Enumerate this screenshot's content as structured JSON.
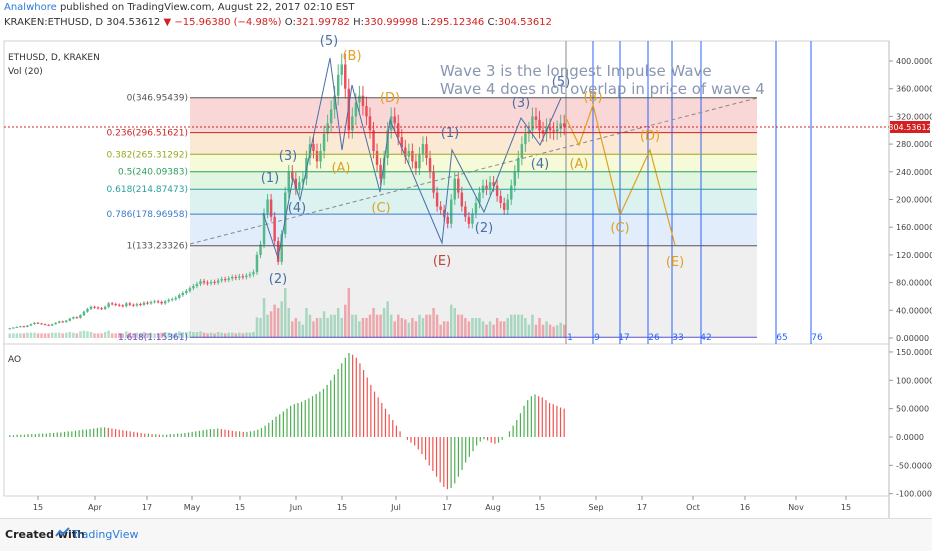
{
  "header": {
    "author": "Analwhore",
    "published": " published on TradingView.com, August 22, 2017 02:10 EST",
    "symbol_line": "KRAKEN:ETHUSD, D  304.53612",
    "change": "▼ −15.96380 (−4.98%)",
    "ohlc_o_label": " O:",
    "ohlc_o": "321.99782",
    "ohlc_h_label": " H:",
    "ohlc_h": "330.99998",
    "ohlc_l_label": " L:",
    "ohlc_l": "295.12346",
    "ohlc_c_label": " C:",
    "ohlc_c": "304.53612"
  },
  "panes": {
    "main_title": "ETHUSD, D, KRAKEN",
    "vol_label": "Vol (20)",
    "ao_label": "AO"
  },
  "annotation": {
    "line1": "Wave 3 is the longest Impulse Wave",
    "line2": "Wave 4 does not overlap in price of wave 4"
  },
  "colors": {
    "up": "#53b987",
    "down": "#eb4d5c",
    "fib_line": "#555555",
    "wave_blue": "#4a6fa5",
    "wave_orange": "#e0a020",
    "label_red": "#b5473f",
    "vline": "#2962ff",
    "ao_up": "#4caf50",
    "ao_down": "#ef5350"
  },
  "chart_data": [
    {
      "type": "candlestick",
      "title": "ETHUSD, D, KRAKEN",
      "x_tick_labels": [
        "15",
        "Apr",
        "17",
        "May",
        "15",
        "Jun",
        "15",
        "Jul",
        "17",
        "Aug",
        "15",
        "Sep",
        "17",
        "Oct",
        "16",
        "Nov",
        "15"
      ],
      "y_tick_labels": [
        "400.00000",
        "360.00000",
        "320.00000",
        "280.00000",
        "240.00000",
        "200.00000",
        "160.00000",
        "120.00000",
        "80.00000",
        "40.00000",
        "0.00000"
      ],
      "ylim": [
        0,
        420
      ],
      "last_price_label": "304.53612",
      "closes": [
        14,
        15,
        16,
        17,
        16,
        18,
        20,
        22,
        21,
        20,
        19,
        18,
        20,
        22,
        24,
        23,
        25,
        28,
        30,
        29,
        33,
        38,
        42,
        45,
        44,
        43,
        42,
        45,
        50,
        49,
        48,
        47,
        46,
        50,
        48,
        47,
        49,
        48,
        51,
        50,
        52,
        53,
        52,
        50,
        53,
        55,
        56,
        58,
        62,
        65,
        68,
        72,
        75,
        78,
        82,
        80,
        79,
        81,
        80,
        83,
        85,
        84,
        86,
        88,
        87,
        89,
        88,
        90,
        92,
        95,
        120,
        135,
        180,
        200,
        175,
        140,
        110,
        150,
        210,
        240,
        230,
        215,
        225,
        230,
        260,
        280,
        270,
        255,
        270,
        295,
        310,
        330,
        350,
        380,
        395,
        360,
        300,
        320,
        340,
        350,
        335,
        320,
        300,
        270,
        250,
        230,
        260,
        300,
        320,
        310,
        290,
        275,
        262,
        270,
        255,
        245,
        265,
        280,
        260,
        240,
        210,
        190,
        185,
        175,
        165,
        200,
        230,
        210,
        190,
        175,
        165,
        180,
        195,
        210,
        220,
        215,
        225,
        220,
        205,
        195,
        185,
        200,
        220,
        240,
        260,
        280,
        295,
        300,
        320,
        315,
        300,
        295,
        305,
        300,
        298,
        302,
        310,
        305
      ],
      "fib_levels": [
        {
          "ratio": "0",
          "value": 346.95439,
          "label": "0(346.95439)"
        },
        {
          "ratio": "0.236",
          "value": 296.51621,
          "label": "0.236(296.51621)"
        },
        {
          "ratio": "0.382",
          "value": 265.31292,
          "label": "0.382(265.31292)"
        },
        {
          "ratio": "0.5",
          "value": 240.09383,
          "label": "0.5(240.09383)"
        },
        {
          "ratio": "0.618",
          "value": 214.87473,
          "label": "0.618(214.87473)"
        },
        {
          "ratio": "0.786",
          "value": 178.96958,
          "label": "0.786(178.96958)"
        },
        {
          "ratio": "1",
          "value": 133.23326,
          "label": "1(133.23326)"
        },
        {
          "ratio": "1.618",
          "value": 1.15361,
          "label": "1.618(1.15361)"
        }
      ],
      "fib_colors": [
        "#f4b6b6",
        "#f7d7b0",
        "#eef5b8",
        "#c8efc8",
        "#c0e8e6",
        "#c8def7",
        "#e2e2e2",
        "#c9c7f1"
      ],
      "wave_labels": [
        {
          "text": "(5)",
          "color": "blue",
          "x": 329,
          "y": 45
        },
        {
          "text": "(B)",
          "color": "orange",
          "x": 352,
          "y": 60
        },
        {
          "text": "(3)",
          "color": "blue",
          "x": 288,
          "y": 160
        },
        {
          "text": "(1)",
          "color": "blue",
          "x": 270,
          "y": 182
        },
        {
          "text": "(4)",
          "color": "blue",
          "x": 297,
          "y": 212
        },
        {
          "text": "(2)",
          "color": "blue",
          "x": 278,
          "y": 283
        },
        {
          "text": "(A)",
          "color": "orange",
          "x": 341,
          "y": 172
        },
        {
          "text": "(D)",
          "color": "orange",
          "x": 390,
          "y": 102
        },
        {
          "text": "(C)",
          "color": "orange",
          "x": 381,
          "y": 212
        },
        {
          "text": "(E)",
          "color": "red",
          "x": 442,
          "y": 265
        },
        {
          "text": "(1)",
          "color": "blue",
          "x": 450,
          "y": 137
        },
        {
          "text": "(2)",
          "color": "blue",
          "x": 484,
          "y": 232
        },
        {
          "text": "(3)",
          "color": "blue",
          "x": 521,
          "y": 107
        },
        {
          "text": "(4)",
          "color": "blue",
          "x": 540,
          "y": 168
        },
        {
          "text": "(5)",
          "color": "blue",
          "x": 561,
          "y": 86
        },
        {
          "text": "(B)",
          "color": "orange",
          "x": 593,
          "y": 101
        },
        {
          "text": "(A)",
          "color": "orange",
          "x": 579,
          "y": 168
        },
        {
          "text": "(D)",
          "color": "orange",
          "x": 650,
          "y": 140
        },
        {
          "text": "(C)",
          "color": "orange",
          "x": 620,
          "y": 232
        },
        {
          "text": "(E)",
          "color": "orange",
          "x": 675,
          "y": 266
        }
      ],
      "bar_count_labels": [
        "1",
        "9",
        "17",
        "26",
        "33",
        "42",
        "65",
        "76"
      ]
    },
    {
      "type": "bar",
      "title": "AO",
      "y_tick_labels": [
        "150.0000",
        "100.0000",
        "50.0000",
        "0.0000",
        "-50.0000",
        "-100.0000"
      ],
      "ylim": [
        -100,
        150
      ],
      "values": [
        3,
        3,
        4,
        4,
        4,
        5,
        5,
        5,
        6,
        6,
        6,
        7,
        7,
        8,
        8,
        9,
        10,
        10,
        11,
        12,
        13,
        13,
        14,
        15,
        16,
        17,
        17,
        16,
        15,
        14,
        13,
        12,
        11,
        10,
        9,
        8,
        7,
        6,
        6,
        5,
        5,
        4,
        4,
        4,
        5,
        5,
        6,
        6,
        7,
        8,
        9,
        10,
        11,
        12,
        13,
        14,
        14,
        15,
        14,
        13,
        12,
        11,
        10,
        10,
        9,
        9,
        10,
        11,
        13,
        16,
        20,
        25,
        30,
        36,
        40,
        45,
        50,
        55,
        58,
        60,
        62,
        65,
        68,
        72,
        76,
        80,
        85,
        92,
        100,
        110,
        120,
        130,
        140,
        148,
        145,
        140,
        130,
        118,
        105,
        92,
        80,
        70,
        60,
        50,
        40,
        30,
        20,
        10,
        0,
        -5,
        -10,
        -15,
        -22,
        -30,
        -40,
        -50,
        -60,
        -70,
        -80,
        -88,
        -92,
        -90,
        -82,
        -70,
        -58,
        -45,
        -35,
        -25,
        -15,
        -8,
        -4,
        -6,
        -10,
        -12,
        -10,
        -5,
        0,
        10,
        20,
        30,
        42,
        55,
        65,
        72,
        75,
        72,
        70,
        65,
        60,
        58,
        55,
        52,
        50
      ]
    }
  ]
}
